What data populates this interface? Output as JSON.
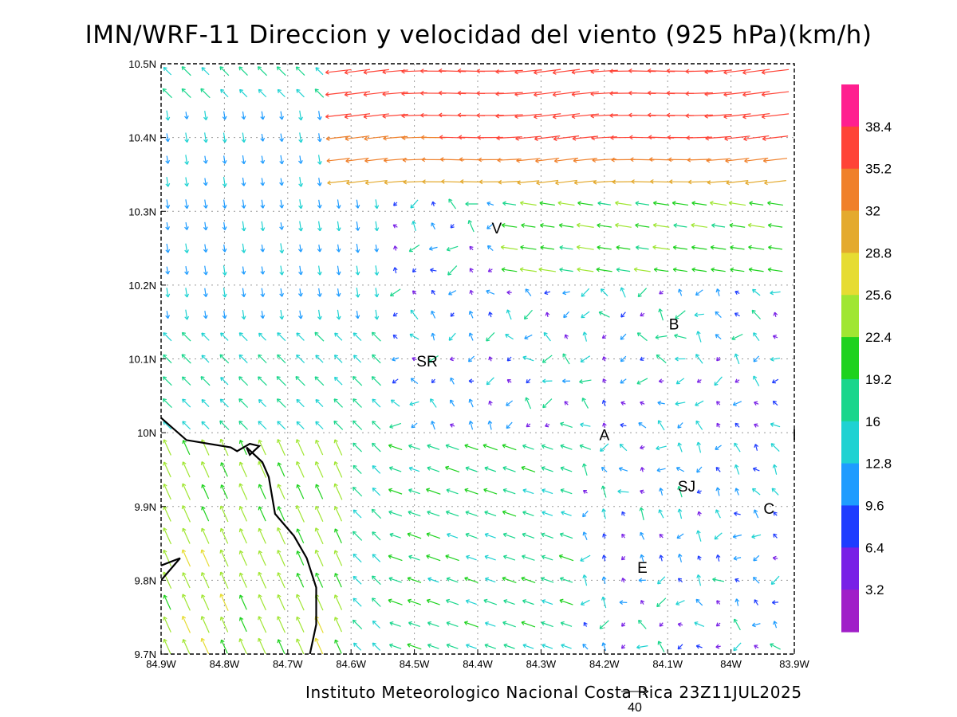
{
  "title": "IMN/WRF-11 Direccion y velocidad del viento (925 hPa)(km/h)",
  "credit": "Instituto Meteorologico Nacional Costa Rica 23Z11JUL2025",
  "reference_vector": {
    "label": "40",
    "speed": 40
  },
  "chart_data": {
    "type": "vector_field",
    "title": "IMN/WRF-11 Direccion y velocidad del viento (925 hPa)(km/h)",
    "x_ticks": [
      "84.9W",
      "84.8W",
      "84.7W",
      "84.6W",
      "84.5W",
      "84.4W",
      "84.3W",
      "84.2W",
      "84.1W",
      "84W",
      "83.9W"
    ],
    "y_ticks": [
      "10.5N",
      "10.4N",
      "10.3N",
      "10.2N",
      "10.1N",
      "10N",
      "9.9N",
      "9.8N",
      "9.7N"
    ],
    "xlim": [
      -84.9,
      -83.9
    ],
    "ylim": [
      9.7,
      10.5
    ],
    "grid": true,
    "colorbar": {
      "labels": [
        "38.4",
        "35.2",
        "32",
        "28.8",
        "25.6",
        "22.4",
        "19.2",
        "16",
        "12.8",
        "9.6",
        "6.4",
        "3.2"
      ],
      "colors": [
        "#ff1f8f",
        "#ff4437",
        "#f0802a",
        "#e4aa2e",
        "#e6dc32",
        "#a0e632",
        "#1ed21e",
        "#19d68c",
        "#1ed2d2",
        "#1e9cff",
        "#1e3cff",
        "#7820e6",
        "#a01ec8"
      ]
    },
    "places": [
      {
        "label": "V",
        "lon": -84.37,
        "lat": 10.27
      },
      {
        "label": "SR",
        "lon": -84.48,
        "lat": 10.09
      },
      {
        "label": "B",
        "lon": -84.09,
        "lat": 10.14
      },
      {
        "label": "A",
        "lon": -84.2,
        "lat": 9.99
      },
      {
        "label": "SJ",
        "lon": -84.07,
        "lat": 9.92
      },
      {
        "label": "C",
        "lon": -83.94,
        "lat": 9.89
      },
      {
        "label": "E",
        "lon": -84.14,
        "lat": 9.81
      },
      {
        "label": "I",
        "lon": -83.9,
        "lat": 9.99
      }
    ],
    "coastline": [
      [
        -84.9,
        10.02
      ],
      [
        -84.86,
        9.99
      ],
      [
        -84.79,
        9.98
      ],
      [
        -84.78,
        9.975
      ],
      [
        -84.76,
        9.985
      ],
      [
        -84.745,
        9.982
      ],
      [
        -84.76,
        9.97
      ],
      [
        -84.765,
        9.98
      ],
      [
        -84.74,
        9.96
      ],
      [
        -84.73,
        9.94
      ],
      [
        -84.72,
        9.89
      ],
      [
        -84.69,
        9.86
      ],
      [
        -84.67,
        9.83
      ],
      [
        -84.655,
        9.79
      ],
      [
        -84.655,
        9.74
      ],
      [
        -84.665,
        9.7
      ]
    ],
    "coastline2": [
      [
        -84.9,
        9.8
      ],
      [
        -84.87,
        9.83
      ],
      [
        -84.9,
        9.82
      ]
    ]
  }
}
